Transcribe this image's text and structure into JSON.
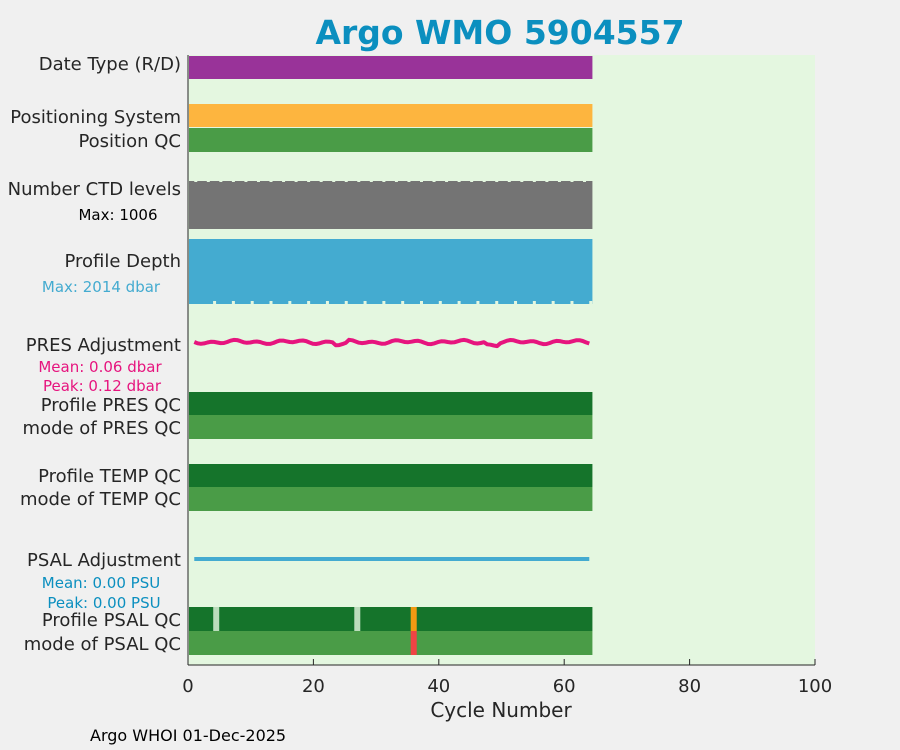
{
  "chart_data": {
    "type": "bar",
    "title": "Argo WMO 5904557",
    "xlabel": "Cycle Number",
    "xlim": [
      0,
      100
    ],
    "xticks": [
      0,
      20,
      40,
      60,
      80,
      100
    ],
    "last_cycle": 64,
    "footer": "Argo WHOI 01-Dec-2025",
    "colors": {
      "title": "#0b8fbf",
      "plot_bg": "#e4f7e0",
      "date_type": "#993399",
      "positioning": "#fdb53f",
      "qc_good": "#4a9c47",
      "qc_profile_a": "#15742b",
      "ctd_levels": "#747474",
      "profile_depth": "#44abd0",
      "pres_adjust": "#e6147e",
      "psal_adjust": "#44abd0",
      "psal_gap": "#bcdcbc",
      "psal_flag_orange": "#f29a12",
      "psal_flag_red": "#ef4444"
    },
    "rows": [
      {
        "label": "Date Type (R/D)"
      },
      {
        "label": "Positioning System"
      },
      {
        "label": "Position QC"
      },
      {
        "label": "Number CTD levels"
      },
      {
        "label": "Profile Depth"
      },
      {
        "label": "PRES Adjustment"
      },
      {
        "label": "Profile PRES QC"
      },
      {
        "label": "mode of PRES QC"
      },
      {
        "label": "Profile TEMP QC"
      },
      {
        "label": "mode of TEMP QC"
      },
      {
        "label": "PSAL Adjustment"
      },
      {
        "label": "Profile PSAL QC"
      },
      {
        "label": "mode of PSAL QC"
      }
    ],
    "annotations": {
      "ctd_max": "Max: 1006",
      "depth_max": "Max: 2014 dbar",
      "pres_mean": "Mean: 0.06 dbar",
      "pres_peak": "Peak: 0.12 dbar",
      "psal_mean": "Mean: 0.00 PSU",
      "psal_peak": "Peak: 0.00 PSU"
    },
    "psal_profile_qc_special": [
      {
        "cycle": 4.5,
        "flag": "gap"
      },
      {
        "cycle": 27,
        "flag": "gap"
      },
      {
        "cycle": 36,
        "flag": "orange"
      }
    ],
    "psal_mode_qc_special": [
      {
        "cycle": 36,
        "flag": "red"
      }
    ]
  }
}
